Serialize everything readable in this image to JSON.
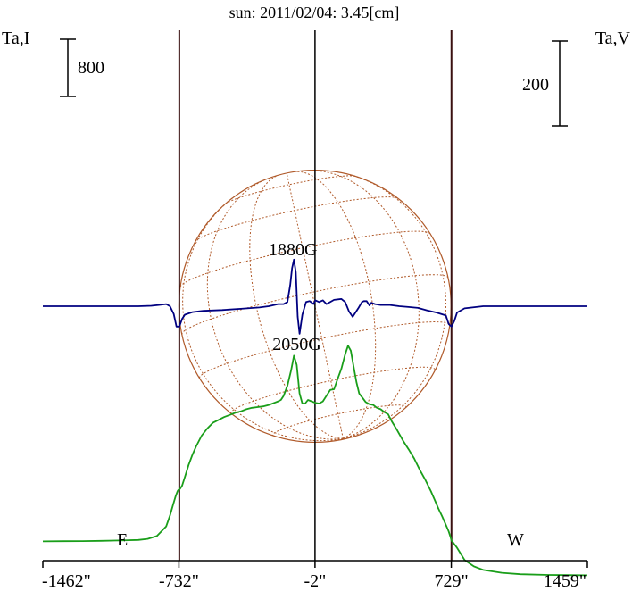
{
  "chart_data": {
    "type": "line",
    "title": "sun: 2011/02/04: 3.45[cm]",
    "left_axis_label": "Ta,I",
    "right_axis_label": "Ta,V",
    "left_scale_bar": "800",
    "right_scale_bar": "200",
    "x_ticks": [
      "-1462\"",
      "-732\"",
      "-2\"",
      "729\"",
      "1459\""
    ],
    "x_tick_values": [
      -1462,
      -732,
      -2,
      729,
      1459
    ],
    "xlim": [
      -1462,
      1459
    ],
    "limb_labels": {
      "east": "E",
      "west": "W"
    },
    "limb_positions": [
      -730,
      730
    ],
    "center_line": -2,
    "annotations": [
      {
        "text": "1880G",
        "x": -120,
        "position": "above"
      },
      {
        "text": "2050G",
        "x": -100,
        "position": "below"
      }
    ],
    "colors": {
      "intensity": "#1a9e1a",
      "polarization": "#000080",
      "grid": "#b05a2a",
      "limb_lines": "#3a1010",
      "axis": "#000000",
      "title": "#1a2a80"
    },
    "series": [
      {
        "id": "intensity",
        "x": [
          -1462,
          -1350,
          -1250,
          -1150,
          -1050,
          -950,
          -900,
          -850,
          -800,
          -780,
          -765,
          -750,
          -740,
          -735,
          -730,
          -725,
          -715,
          -700,
          -680,
          -660,
          -640,
          -610,
          -580,
          -550,
          -520,
          -490,
          -460,
          -430,
          -400,
          -370,
          -340,
          -310,
          -280,
          -250,
          -220,
          -200,
          -185,
          -170,
          -150,
          -130,
          -115,
          -100,
          -85,
          -70,
          -55,
          -40,
          -20,
          0,
          20,
          40,
          60,
          80,
          100,
          120,
          140,
          160,
          175,
          190,
          205,
          220,
          235,
          250,
          270,
          290,
          310,
          330,
          350,
          370,
          390,
          410,
          440,
          470,
          500,
          530,
          560,
          590,
          620,
          640,
          660,
          680,
          700,
          715,
          725,
          730,
          740,
          760,
          800,
          850,
          900,
          1000,
          1100,
          1250,
          1459
        ],
        "values": [
          20,
          22,
          24,
          28,
          32,
          40,
          55,
          95,
          230,
          380,
          520,
          650,
          720,
          740,
          745,
          760,
          800,
          920,
          1090,
          1230,
          1350,
          1500,
          1600,
          1680,
          1720,
          1760,
          1790,
          1820,
          1840,
          1870,
          1890,
          1900,
          1910,
          1930,
          1960,
          1980,
          2000,
          2060,
          2200,
          2420,
          2620,
          2490,
          2090,
          1950,
          1950,
          2000,
          1980,
          1960,
          1950,
          1980,
          2060,
          2140,
          2150,
          2300,
          2440,
          2640,
          2760,
          2690,
          2470,
          2250,
          2090,
          2040,
          1970,
          1940,
          1930,
          1890,
          1870,
          1830,
          1800,
          1700,
          1570,
          1430,
          1310,
          1180,
          1020,
          880,
          720,
          600,
          480,
          370,
          250,
          160,
          80,
          30,
          0,
          -70,
          -240,
          -330,
          -380,
          -420,
          -440,
          -450,
          -455
        ]
      },
      {
        "id": "polarization",
        "x": [
          -1462,
          -1100,
          -950,
          -880,
          -840,
          -800,
          -780,
          -760,
          -745,
          -730,
          -715,
          -700,
          -660,
          -600,
          -500,
          -400,
          -300,
          -250,
          -200,
          -170,
          -150,
          -135,
          -125,
          -115,
          -105,
          -95,
          -85,
          -70,
          -50,
          -30,
          -10,
          0,
          20,
          40,
          60,
          100,
          140,
          160,
          180,
          200,
          230,
          250,
          260,
          275,
          290,
          300,
          320,
          350,
          400,
          450,
          500,
          550,
          600,
          650,
          700,
          715,
          730,
          745,
          760,
          800,
          900,
          1000,
          1200,
          1459
        ],
        "values": [
          0,
          0,
          0,
          1,
          3,
          5,
          0,
          -18,
          -48,
          -48,
          -30,
          -20,
          -14,
          -11,
          -9,
          -6,
          -3,
          0,
          5,
          5,
          10,
          50,
          90,
          110,
          80,
          -25,
          -65,
          -20,
          10,
          12,
          5,
          14,
          10,
          14,
          5,
          15,
          17,
          10,
          -12,
          -25,
          -5,
          10,
          12,
          12,
          2,
          8,
          5,
          3,
          3,
          0,
          -2,
          -4,
          -10,
          -15,
          -22,
          -42,
          -48,
          -35,
          -15,
          -5,
          0,
          0,
          0,
          0
        ]
      }
    ]
  }
}
